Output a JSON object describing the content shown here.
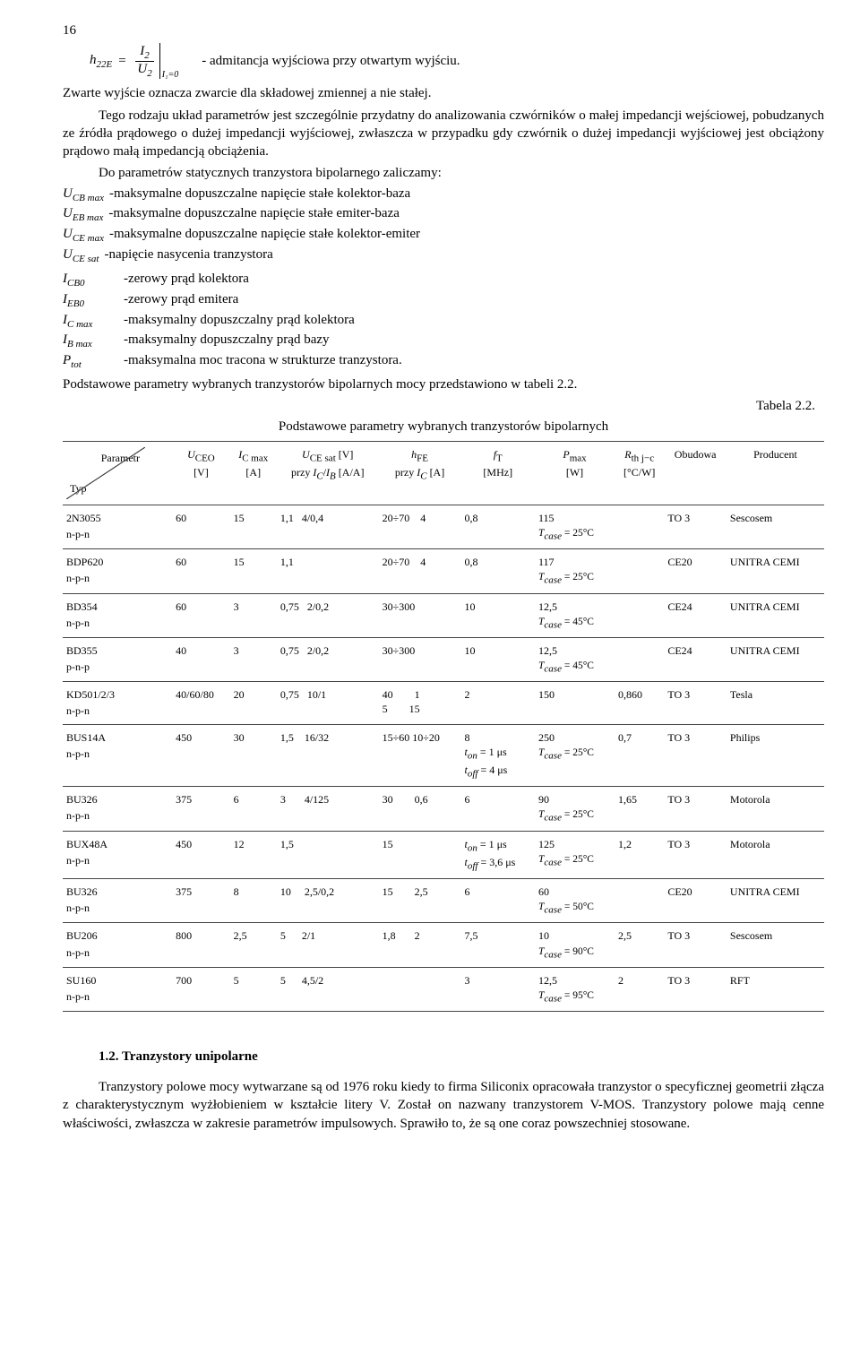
{
  "page_number": "16",
  "equation": {
    "lhs_h": "h",
    "lhs_sub": "22E",
    "frac_top": "I",
    "frac_top_sub": "2",
    "frac_bot": "U",
    "frac_bot_sub": "2",
    "cond": "I₁=0",
    "desc": "- admitancja wyjściowa przy otwartym wyjściu."
  },
  "p1": "Zwarte wyjście oznacza zwarcie dla składowej zmiennej  a nie stałej.",
  "p2": "Tego rodzaju układ parametrów jest szczególnie przydatny do analizowania czwórników o małej impedancji wejściowej, pobudzanych ze źródła prądowego o dużej impedancji wyjściowej, zwłaszcza w przypadku gdy czwórnik o dużej impedancji wyjściowej jest obciążony prądowo małą impedancją obciążenia.",
  "p3_lead": "Do parametrów statycznych tranzystora bipolarnego zaliczamy:",
  "params_a": [
    {
      "sym": "U",
      "sub": "CB max",
      "desc": "-maksymalne dopuszczalne napięcie stałe kolektor-baza"
    },
    {
      "sym": "U",
      "sub": "EB max",
      "desc": "-maksymalne dopuszczalne napięcie stałe emiter-baza"
    },
    {
      "sym": "U",
      "sub": "CE max",
      "desc": "-maksymalne dopuszczalne napięcie stałe kolektor-emiter"
    },
    {
      "sym": "U",
      "sub": "CE sat",
      "desc": "-napięcie nasycenia tranzystora"
    }
  ],
  "params_b": [
    {
      "sym": "I",
      "sub": "CB0",
      "desc": "-zerowy prąd kolektora"
    },
    {
      "sym": "I",
      "sub": "EB0",
      "desc": "-zerowy prąd emitera"
    },
    {
      "sym": "I",
      "sub": "C max",
      "desc": "-maksymalny dopuszczalny prąd kolektora"
    },
    {
      "sym": "I",
      "sub": "B max",
      "desc": "-maksymalny dopuszczalny prąd bazy"
    },
    {
      "sym": "P",
      "sub": "tot",
      "desc": "-maksymalna moc tracona w strukturze tranzystora."
    }
  ],
  "p4": "Podstawowe parametry wybranych tranzystorów bipolarnych mocy przedstawiono w tabeli 2.2.",
  "tabela_label": "Tabela 2.2.",
  "table_title": "Podstawowe parametry wybranych tranzystorów bipolarnych",
  "table": {
    "diag_top": "Parametr",
    "diag_bot": "Typ",
    "headers": [
      {
        "l1": "U",
        "sub": "CEO",
        "l2": "[V]"
      },
      {
        "l1": "I",
        "sub": "C max",
        "l2": "[A]"
      },
      {
        "l1": "U",
        "sub": "CE sat",
        "l2b": " [V]",
        "l2": "przy I_C/I_B [A/A]"
      },
      {
        "l1": "h",
        "sub": "FE",
        "l2": "przy I_C [A]"
      },
      {
        "l1": "f",
        "sub": "T",
        "l2": "[MHz]"
      },
      {
        "l1": "P",
        "sub": "max",
        "l2": "[W]"
      },
      {
        "l1": "R",
        "sub": "th j−c",
        "l2": "[°C/W]"
      },
      {
        "l1": "Obudowa",
        "l2": ""
      },
      {
        "l1": "Producent",
        "l2": ""
      }
    ],
    "rows": [
      {
        "type": "2N3055",
        "sub": "n-p-n",
        "uceo": "60",
        "ic": "15",
        "uces": "1,1   4/0,4",
        "hfe": "20÷70    4",
        "ft": "0,8",
        "pmax": "115",
        "tcase": "T_case = 25°C",
        "rth": "",
        "obud": "TO 3",
        "prod": "Sescosem"
      },
      {
        "type": "BDP620",
        "sub": "n-p-n",
        "uceo": "60",
        "ic": "15",
        "uces": "1,1",
        "hfe": "20÷70    4",
        "ft": "0,8",
        "pmax": "117",
        "tcase": "T_case = 25°C",
        "rth": "",
        "obud": "CE20",
        "prod": "UNITRA CEMI"
      },
      {
        "type": "BD354",
        "sub": "n-p-n",
        "uceo": "60",
        "ic": "3",
        "uces": "0,75   2/0,2",
        "hfe": "30÷300",
        "ft": "10",
        "pmax": "12,5",
        "tcase": "T_case = 45°C",
        "rth": "",
        "obud": "CE24",
        "prod": "UNITRA CEMI"
      },
      {
        "type": "BD355",
        "sub": "p-n-p",
        "uceo": "40",
        "ic": "3",
        "uces": "0,75   2/0,2",
        "hfe": "30÷300",
        "ft": "10",
        "pmax": "12,5",
        "tcase": "T_case = 45°C",
        "rth": "",
        "obud": "CE24",
        "prod": "UNITRA CEMI"
      },
      {
        "type": "KD501/2/3",
        "sub": "n-p-n",
        "uceo": "40/60/80",
        "ic": "20",
        "uces": "0,75   10/1",
        "hfe": "40        1\n5        15",
        "ft": "2",
        "pmax": "150",
        "tcase": "",
        "rth": "0,860",
        "obud": "TO 3",
        "prod": "Tesla"
      },
      {
        "type": "BUS14A",
        "sub": "n-p-n",
        "uceo": "450",
        "ic": "30",
        "uces": "1,5    16/32",
        "hfe": "15÷60 10÷20",
        "ft": "8\nt_on = 1 μs\nt_off = 4 μs",
        "pmax": "250",
        "tcase": "T_case = 25°C",
        "rth": "0,7",
        "obud": "TO 3",
        "prod": "Philips"
      },
      {
        "type": "BU326",
        "sub": "n-p-n",
        "uceo": "375",
        "ic": "6",
        "uces": "3       4/125",
        "hfe": "30        0,6",
        "ft": "6",
        "pmax": "90",
        "tcase": "T_case = 25°C",
        "rth": "1,65",
        "obud": "TO 3",
        "prod": "Motorola"
      },
      {
        "type": "BUX48A",
        "sub": "n-p-n",
        "uceo": "450",
        "ic": "12",
        "uces": "1,5",
        "hfe": "15",
        "ft": "t_on = 1 μs\nt_off = 3,6 μs",
        "pmax": "125",
        "tcase": "T_case = 25°C",
        "rth": "1,2",
        "obud": "TO 3",
        "prod": "Motorola"
      },
      {
        "type": "BU326",
        "sub": "n-p-n",
        "uceo": "375",
        "ic": "8",
        "uces": "10     2,5/0,2",
        "hfe": "15        2,5",
        "ft": "6",
        "pmax": "60",
        "tcase": "T_case = 50°C",
        "rth": "",
        "obud": "CE20",
        "prod": "UNITRA CEMI"
      },
      {
        "type": "BU206",
        "sub": "n-p-n",
        "uceo": "800",
        "ic": "2,5",
        "uces": "5      2/1",
        "hfe": "1,8       2",
        "ft": "7,5",
        "pmax": "10",
        "tcase": "T_case = 90°C",
        "rth": "2,5",
        "obud": "TO 3",
        "prod": "Sescosem"
      },
      {
        "type": "SU160",
        "sub": "n-p-n",
        "uceo": "700",
        "ic": "5",
        "uces": "5      4,5/2",
        "hfe": "",
        "ft": "3",
        "pmax": "12,5",
        "tcase": "T_case = 95°C",
        "rth": "2",
        "obud": "TO 3",
        "prod": "RFT"
      }
    ]
  },
  "section_1_2": "1.2. Tranzystory unipolarne",
  "p5": "Tranzystory polowe mocy wytwarzane są od 1976 roku kiedy to firma Siliconix opracowała tranzystor o specyficznej geometrii złącza z charakterystycznym wyżłobieniem w kształcie litery V. Został on nazwany tranzystorem V-MOS. Tranzystory polowe mają cenne właściwości, zwłaszcza w zakresie parametrów impulsowych. Sprawiło to, że są one coraz powszechniej stosowane."
}
